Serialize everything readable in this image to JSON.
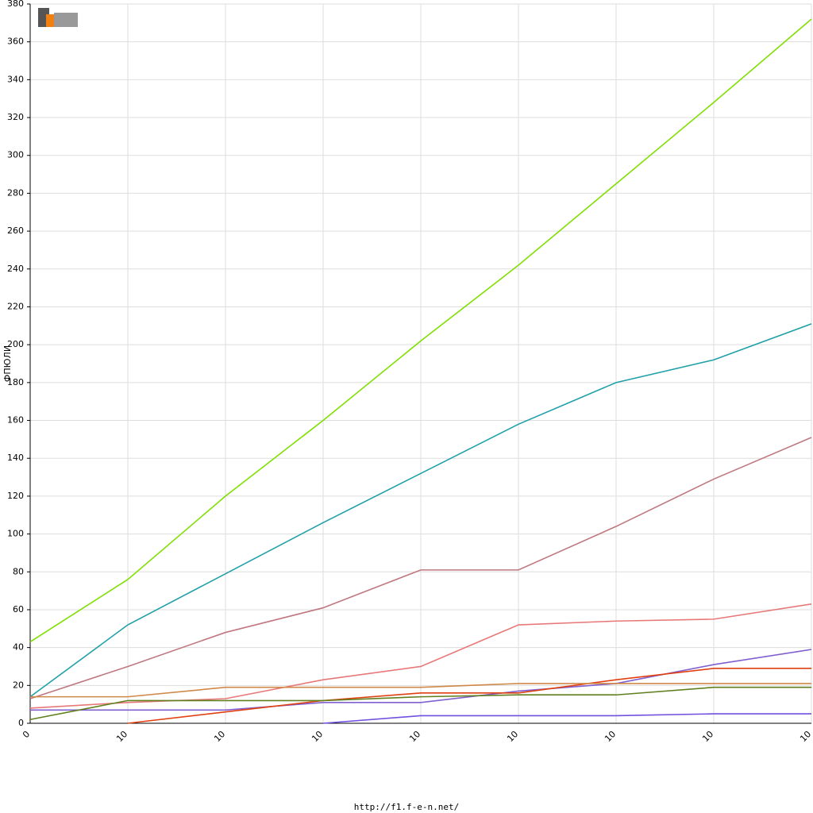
{
  "chart_data": {
    "type": "line",
    "y_label": "ФПЮЛИ",
    "footer": "http://f1.f-e-n.net/",
    "categories": [
      "0",
      "10",
      "10",
      "10",
      "10",
      "10",
      "10",
      "10",
      "10"
    ],
    "ylim": [
      0,
      380
    ],
    "yticks": [
      0,
      20,
      40,
      60,
      80,
      100,
      120,
      140,
      160,
      180,
      200,
      220,
      240,
      260,
      280,
      300,
      320,
      340,
      360,
      380
    ],
    "grid": true,
    "series": [
      {
        "color": "#7fe000",
        "values": [
          43,
          76,
          120,
          160,
          202,
          242,
          285,
          328,
          372
        ]
      },
      {
        "color": "#20a0a8",
        "values": [
          14,
          52,
          79,
          106,
          132,
          158,
          180,
          192,
          211
        ]
      },
      {
        "color": "#c07880",
        "values": [
          13,
          30,
          48,
          61,
          81,
          81,
          104,
          129,
          151
        ]
      },
      {
        "color": "#e87878",
        "values": [
          8,
          11,
          13,
          23,
          30,
          52,
          54,
          55,
          63
        ]
      },
      {
        "color": "#8060d0",
        "values": [
          7,
          7,
          7,
          11,
          11,
          17,
          21,
          31,
          39
        ]
      },
      {
        "color": "#7050e0",
        "values": [
          null,
          null,
          null,
          0,
          4,
          4,
          4,
          5,
          5
        ]
      },
      {
        "color": "#e04010",
        "values": [
          null,
          0,
          6,
          12,
          16,
          16,
          23,
          29,
          29
        ]
      },
      {
        "color": "#d08848",
        "values": [
          14,
          14,
          19,
          19,
          19,
          21,
          21,
          21,
          21
        ]
      },
      {
        "color": "#608020",
        "values": [
          2,
          12,
          12,
          12,
          14,
          15,
          15,
          19,
          19
        ]
      }
    ]
  }
}
